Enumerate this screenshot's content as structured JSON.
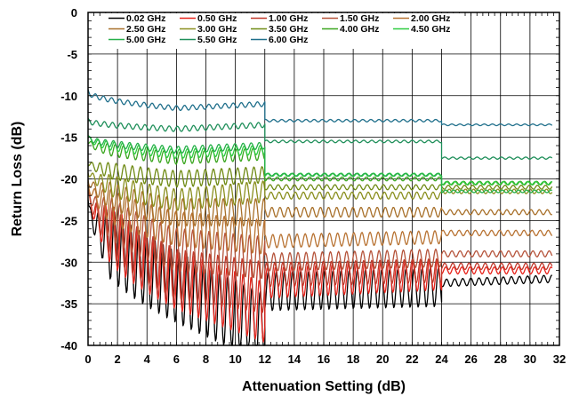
{
  "chart_data": {
    "type": "line",
    "title": "",
    "xlabel": "Attenuation Setting (dB)",
    "ylabel": "Return Loss (dB)",
    "xlim": [
      0,
      32
    ],
    "ylim": [
      -40,
      0
    ],
    "xticks": [
      "0",
      "2",
      "4",
      "6",
      "8",
      "10",
      "12",
      "14",
      "16",
      "18",
      "20",
      "22",
      "24",
      "26",
      "28",
      "30",
      "32"
    ],
    "yticks": [
      "0",
      "-5",
      "-10",
      "-15",
      "-20",
      "-25",
      "-30",
      "-35",
      "-40"
    ],
    "grid": true,
    "legend_position": "top (inside plot)",
    "series": [
      {
        "name": "0.02 GHz",
        "color": "#000000",
        "segments": [
          [
            -22.5,
            -33.0,
            -38.0
          ],
          [
            -33.5,
            -33.0
          ],
          [
            -32.5,
            -32.0
          ]
        ]
      },
      {
        "name": "0.50 GHz",
        "color": "#e8241c",
        "segments": [
          [
            -21.0,
            -32.0,
            -36.0
          ],
          [
            -32.5,
            -31.5
          ],
          [
            -31.0,
            -31.0
          ]
        ]
      },
      {
        "name": "1.00 GHz",
        "color": "#c0392b",
        "segments": [
          [
            -21.0,
            -31.5,
            -33.0
          ],
          [
            -31.5,
            -31.0
          ],
          [
            -30.5,
            -30.5
          ]
        ]
      },
      {
        "name": "1.50 GHz",
        "color": "#b5533a",
        "segments": [
          [
            -21.0,
            -28.5,
            -29.5
          ],
          [
            -30.0,
            -29.5
          ],
          [
            -29.0,
            -29.0
          ]
        ]
      },
      {
        "name": "2.00 GHz",
        "color": "#b87333",
        "segments": [
          [
            -20.5,
            -26.0,
            -27.0
          ],
          [
            -27.5,
            -27.0
          ],
          [
            -26.5,
            -26.5
          ]
        ]
      },
      {
        "name": "2.50 GHz",
        "color": "#a8702a",
        "segments": [
          [
            -20.0,
            -24.0,
            -24.0
          ],
          [
            -24.0,
            -24.0
          ],
          [
            -24.0,
            -24.0
          ]
        ]
      },
      {
        "name": "3.00 GHz",
        "color": "#8a8f1e",
        "segments": [
          [
            -19.0,
            -22.5,
            -21.5
          ],
          [
            -22.0,
            -22.0
          ],
          [
            -21.5,
            -21.5
          ]
        ]
      },
      {
        "name": "3.50 GHz",
        "color": "#6f8a14",
        "segments": [
          [
            -18.0,
            -20.0,
            -19.5
          ],
          [
            -21.0,
            -21.0
          ],
          [
            -21.0,
            -21.0
          ]
        ]
      },
      {
        "name": "4.00 GHz",
        "color": "#3aa61e",
        "segments": [
          [
            -15.5,
            -17.5,
            -17.0
          ],
          [
            -20.0,
            -20.0
          ],
          [
            -20.5,
            -20.5
          ]
        ]
      },
      {
        "name": "4.50 GHz",
        "color": "#2ecc40",
        "segments": [
          [
            -15.0,
            -17.0,
            -16.5
          ],
          [
            -19.5,
            -19.5
          ],
          [
            -20.5,
            -20.5
          ]
        ]
      },
      {
        "name": "5.00 GHz",
        "color": "#26b04a",
        "segments": [
          [
            -15.0,
            -16.5,
            -16.0
          ],
          [
            -19.5,
            -19.5
          ],
          [
            -21.5,
            -21.5
          ]
        ]
      },
      {
        "name": "5.50 GHz",
        "color": "#1f8f5a",
        "segments": [
          [
            -13.0,
            -14.0,
            -13.5
          ],
          [
            -15.5,
            -15.5
          ],
          [
            -17.5,
            -17.5
          ]
        ]
      },
      {
        "name": "6.00 GHz",
        "color": "#1f6f8b",
        "segments": [
          [
            -9.5,
            -11.5,
            -11.0
          ],
          [
            -13.0,
            -13.0
          ],
          [
            -13.5,
            -13.5
          ]
        ]
      }
    ]
  }
}
